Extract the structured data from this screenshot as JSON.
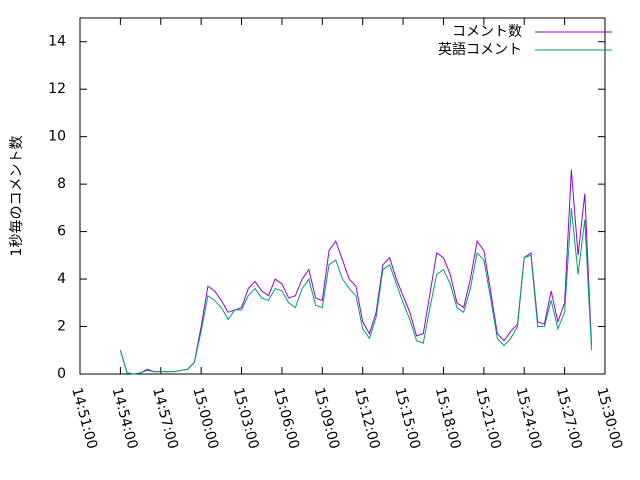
{
  "chart_data": {
    "type": "line",
    "y_label": "1秒毎のコメント数",
    "legend": "top-right",
    "x": [
      "14:54:00",
      "14:54:30",
      "14:55:00",
      "14:55:30",
      "14:56:00",
      "14:56:30",
      "14:57:00",
      "14:57:30",
      "14:58:00",
      "14:58:30",
      "14:59:00",
      "14:59:30",
      "15:00:00",
      "15:00:30",
      "15:01:00",
      "15:01:30",
      "15:02:00",
      "15:02:30",
      "15:03:00",
      "15:03:30",
      "15:04:00",
      "15:04:30",
      "15:05:00",
      "15:05:30",
      "15:06:00",
      "15:06:30",
      "15:07:00",
      "15:07:30",
      "15:08:00",
      "15:08:30",
      "15:09:00",
      "15:09:30",
      "15:10:00",
      "15:10:30",
      "15:11:00",
      "15:11:30",
      "15:12:00",
      "15:12:30",
      "15:13:00",
      "15:13:30",
      "15:14:00",
      "15:14:30",
      "15:15:00",
      "15:15:30",
      "15:16:00",
      "15:16:30",
      "15:17:00",
      "15:17:30",
      "15:18:00",
      "15:18:30",
      "15:19:00",
      "15:19:30",
      "15:20:00",
      "15:20:30",
      "15:21:00",
      "15:21:30",
      "15:22:00",
      "15:22:30",
      "15:23:00",
      "15:23:30",
      "15:24:00",
      "15:24:30",
      "15:25:00",
      "15:25:30",
      "15:26:00",
      "15:26:30",
      "15:27:00",
      "15:27:30",
      "15:28:00",
      "15:28:30",
      "15:29:00"
    ],
    "series": [
      {
        "name": "コメント数",
        "color": "#9400d3",
        "values": [
          1.0,
          0.05,
          0.0,
          0.05,
          0.2,
          0.1,
          0.1,
          0.1,
          0.1,
          0.15,
          0.2,
          0.5,
          2.0,
          3.7,
          3.5,
          3.1,
          2.6,
          2.7,
          2.8,
          3.6,
          3.9,
          3.5,
          3.3,
          4.0,
          3.8,
          3.2,
          3.3,
          4.0,
          4.4,
          3.2,
          3.1,
          5.2,
          5.6,
          4.8,
          4.0,
          3.7,
          2.2,
          1.7,
          2.6,
          4.6,
          4.9,
          4.0,
          3.3,
          2.6,
          1.6,
          1.7,
          3.4,
          5.1,
          4.9,
          4.2,
          3.0,
          2.8,
          4.0,
          5.6,
          5.2,
          3.5,
          1.7,
          1.4,
          1.8,
          2.1,
          4.9,
          5.1,
          2.2,
          2.1,
          3.5,
          2.2,
          3.0,
          8.6,
          5.0,
          7.6,
          1.2
        ]
      },
      {
        "name": "英語コメント",
        "color": "#009e73",
        "values": [
          1.0,
          0.05,
          0.0,
          0.05,
          0.15,
          0.1,
          0.1,
          0.1,
          0.1,
          0.15,
          0.2,
          0.5,
          1.8,
          3.3,
          3.1,
          2.8,
          2.3,
          2.7,
          2.7,
          3.3,
          3.6,
          3.2,
          3.1,
          3.6,
          3.5,
          3.0,
          2.8,
          3.6,
          4.0,
          2.9,
          2.8,
          4.6,
          4.8,
          4.0,
          3.6,
          3.3,
          1.9,
          1.5,
          2.4,
          4.4,
          4.6,
          3.8,
          3.0,
          2.3,
          1.4,
          1.3,
          2.8,
          4.2,
          4.4,
          3.8,
          2.8,
          2.6,
          3.6,
          5.1,
          4.8,
          3.2,
          1.5,
          1.2,
          1.5,
          2.0,
          4.9,
          5.0,
          2.0,
          2.0,
          3.1,
          1.9,
          2.6,
          7.0,
          4.2,
          6.5,
          1.0
        ]
      }
    ],
    "xlim": [
      "14:51:00",
      "15:30:00"
    ],
    "xticks": [
      "14:51:00",
      "14:54:00",
      "14:57:00",
      "15:00:00",
      "15:03:00",
      "15:06:00",
      "15:09:00",
      "15:12:00",
      "15:15:00",
      "15:18:00",
      "15:21:00",
      "15:24:00",
      "15:27:00",
      "15:30:00"
    ],
    "ylim": [
      0,
      15
    ],
    "yticks": [
      0,
      2,
      4,
      6,
      8,
      10,
      12,
      14
    ]
  }
}
